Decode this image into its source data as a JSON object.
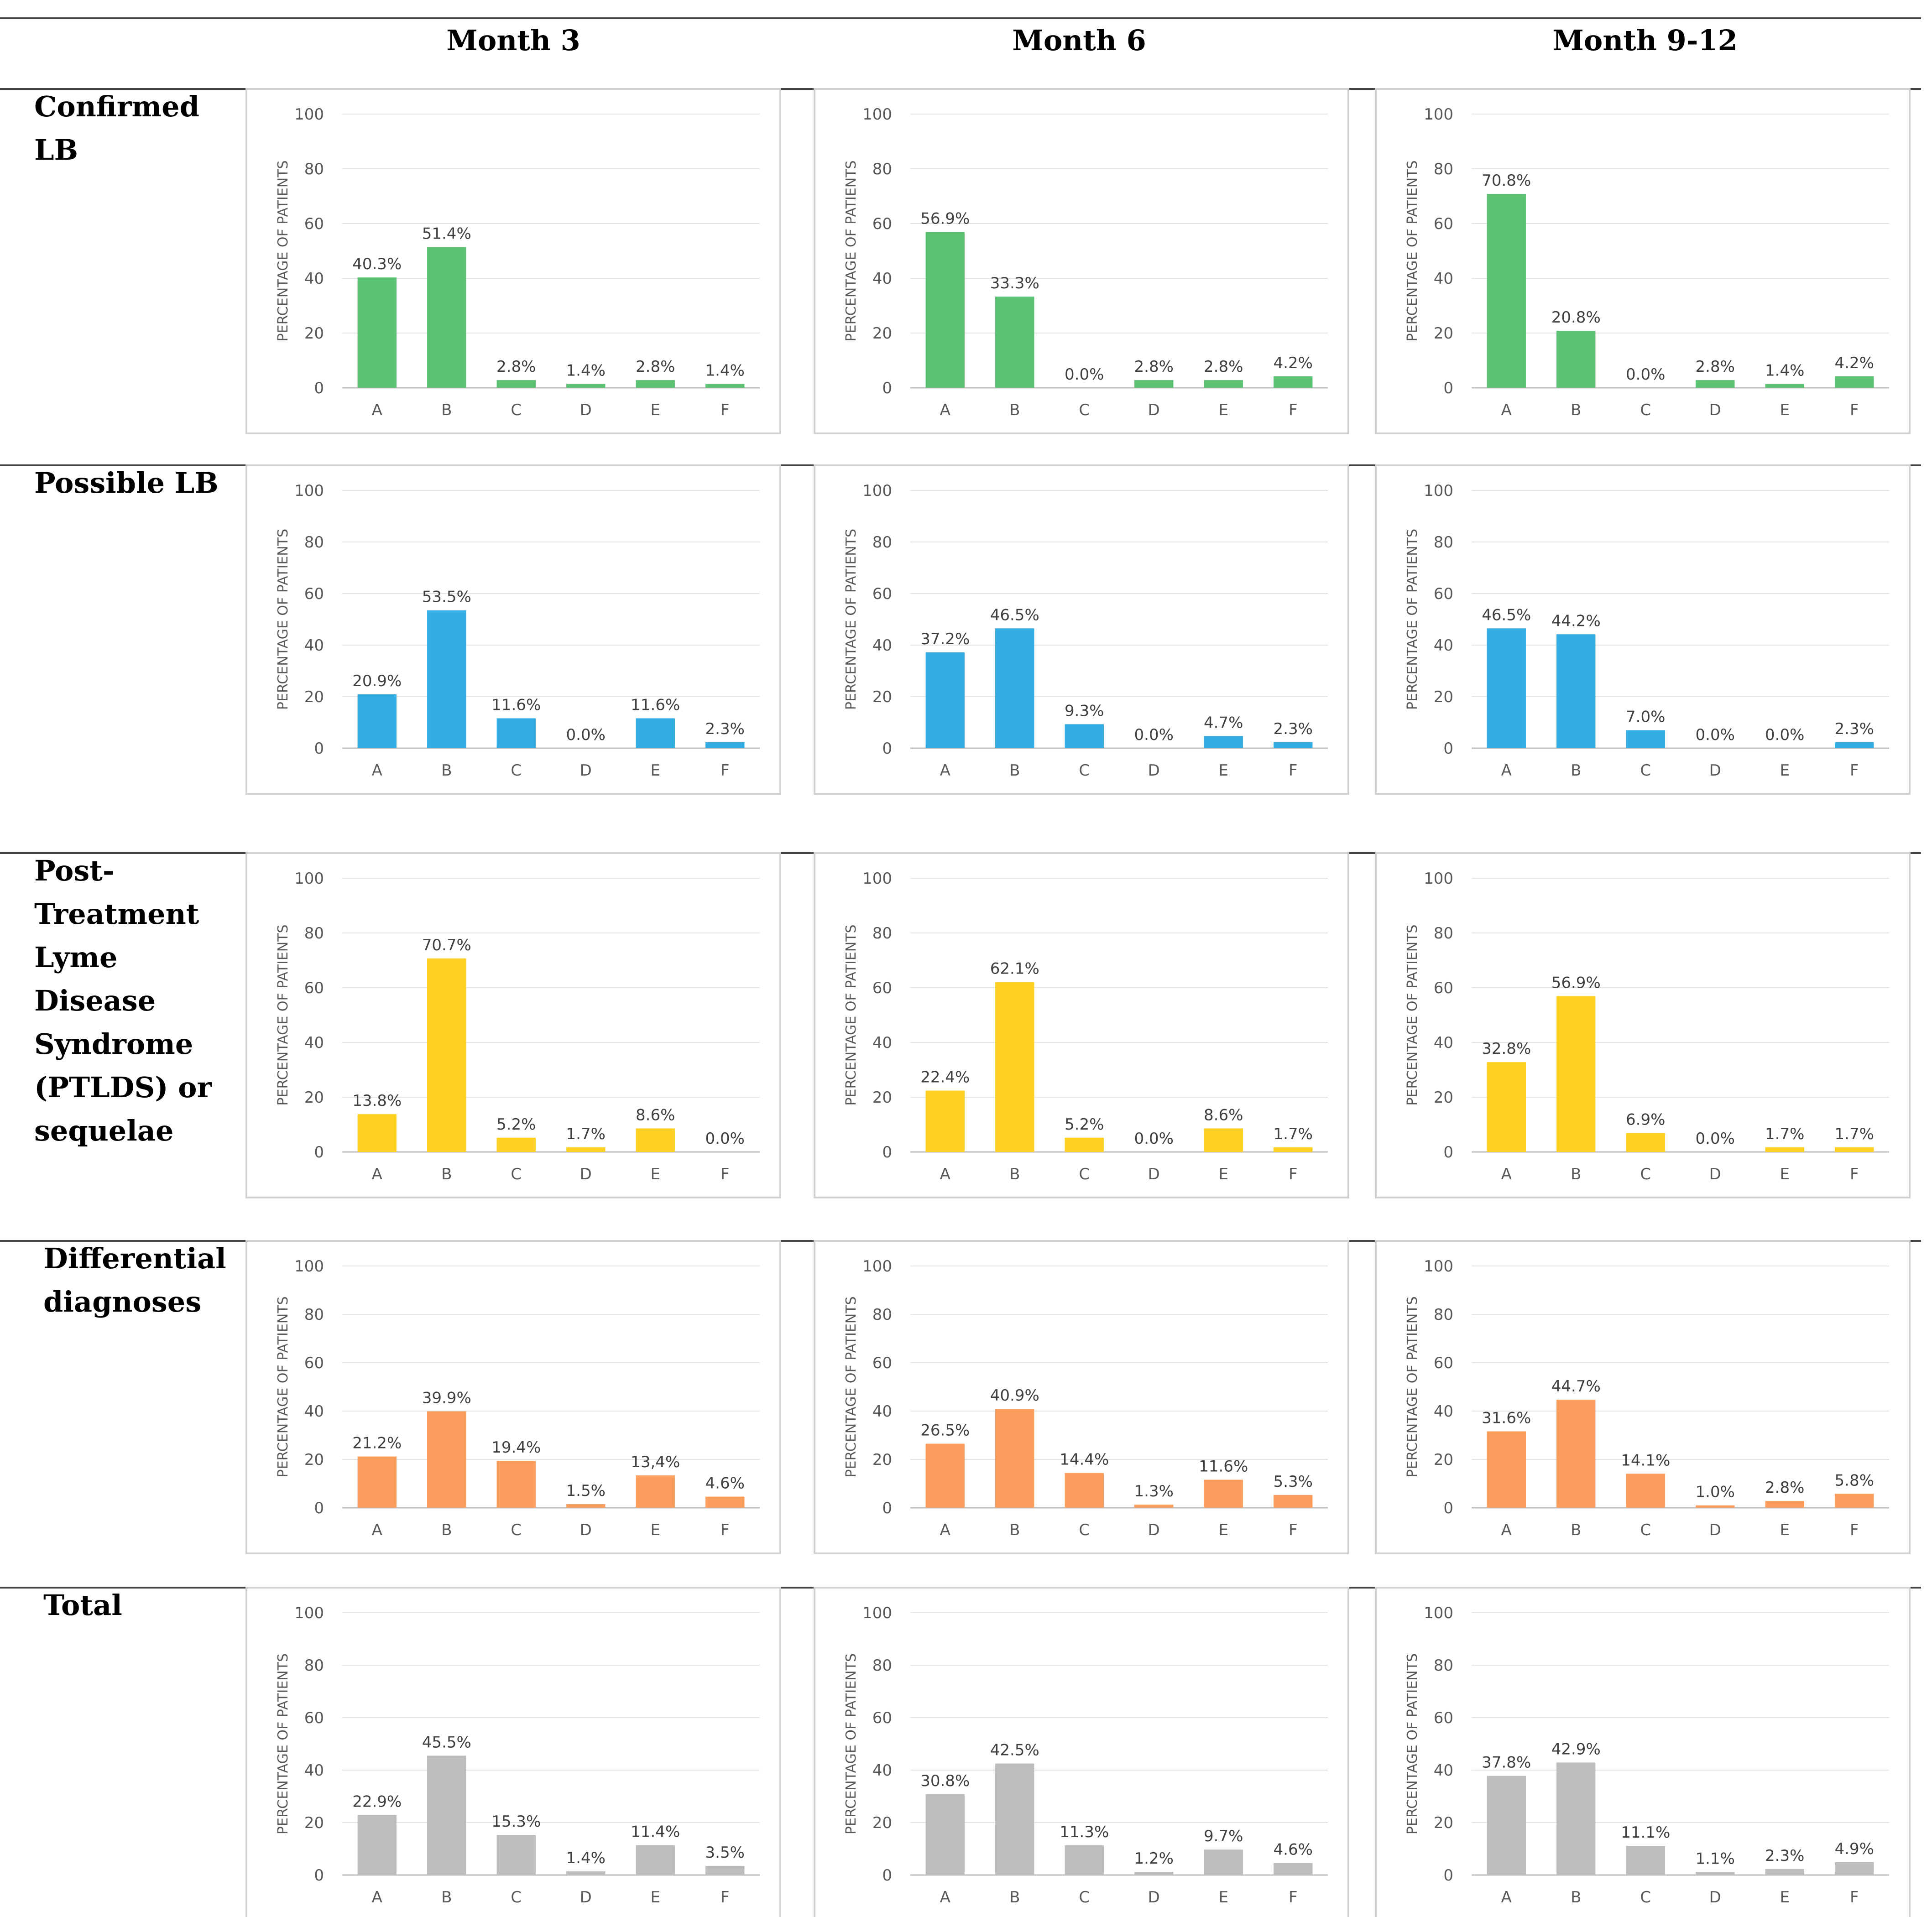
{
  "column_headers": [
    "Month 3",
    "Month 6",
    "Month 9-12"
  ],
  "row_headers": [
    [
      "Confirmed",
      "LB"
    ],
    [
      "Possible LB"
    ],
    [
      "Post-",
      "Treatment",
      "Lyme",
      "Disease",
      "Syndrome",
      "(PTLDS)    or",
      "sequelae"
    ],
    [
      "Differential",
      "diagnoses"
    ],
    [
      "Total"
    ]
  ],
  "row_colors": [
    "#5cc273",
    "#34ade2",
    "#fdd021",
    "#fb9e5d",
    "#bdbdbd"
  ],
  "chart_data": [
    {
      "type": "bar",
      "row": "Confirmed LB",
      "column": "Month 3",
      "categories": [
        "A",
        "B",
        "C",
        "D",
        "E",
        "F"
      ],
      "values": [
        40.3,
        51.4,
        2.8,
        1.4,
        2.8,
        1.4
      ],
      "labels": [
        "40.3%",
        "51.4%",
        "2.8%",
        "1.4%",
        "2.8%",
        "1.4%"
      ],
      "ylabel": "PERCENTAGE OF PATIENTS",
      "ylim": [
        0,
        100
      ],
      "yticks": [
        0,
        20,
        40,
        60,
        80,
        100
      ]
    },
    {
      "type": "bar",
      "row": "Confirmed LB",
      "column": "Month 6",
      "categories": [
        "A",
        "B",
        "C",
        "D",
        "E",
        "F"
      ],
      "values": [
        56.9,
        33.3,
        0.0,
        2.8,
        2.8,
        4.2
      ],
      "labels": [
        "56.9%",
        "33.3%",
        "0.0%",
        "2.8%",
        "2.8%",
        "4.2%"
      ],
      "ylabel": "PERCENTAGE OF PATIENTS",
      "ylim": [
        0,
        100
      ],
      "yticks": [
        0,
        20,
        40,
        60,
        80,
        100
      ]
    },
    {
      "type": "bar",
      "row": "Confirmed LB",
      "column": "Month 9-12",
      "categories": [
        "A",
        "B",
        "C",
        "D",
        "E",
        "F"
      ],
      "values": [
        70.8,
        20.8,
        0.0,
        2.8,
        1.4,
        4.2
      ],
      "labels": [
        "70.8%",
        "20.8%",
        "0.0%",
        "2.8%",
        "1.4%",
        "4.2%"
      ],
      "ylabel": "PERCENTAGE OF PATIENTS",
      "ylim": [
        0,
        100
      ],
      "yticks": [
        0,
        20,
        40,
        60,
        80,
        100
      ]
    },
    {
      "type": "bar",
      "row": "Possible LB",
      "column": "Month 3",
      "categories": [
        "A",
        "B",
        "C",
        "D",
        "E",
        "F"
      ],
      "values": [
        20.9,
        53.5,
        11.6,
        0.0,
        11.6,
        2.3
      ],
      "labels": [
        "20.9%",
        "53.5%",
        "11.6%",
        "0.0%",
        "11.6%",
        "2.3%"
      ],
      "ylabel": "PERCENTAGE OF PATIENTS",
      "ylim": [
        0,
        100
      ],
      "yticks": [
        0,
        20,
        40,
        60,
        80,
        100
      ]
    },
    {
      "type": "bar",
      "row": "Possible LB",
      "column": "Month 6",
      "categories": [
        "A",
        "B",
        "C",
        "D",
        "E",
        "F"
      ],
      "values": [
        37.2,
        46.5,
        9.3,
        0.0,
        4.7,
        2.3
      ],
      "labels": [
        "37.2%",
        "46.5%",
        "9.3%",
        "0.0%",
        "4.7%",
        "2.3%"
      ],
      "ylabel": "PERCENTAGE OF PATIENTS",
      "ylim": [
        0,
        100
      ],
      "yticks": [
        0,
        20,
        40,
        60,
        80,
        100
      ]
    },
    {
      "type": "bar",
      "row": "Possible LB",
      "column": "Month 9-12",
      "categories": [
        "A",
        "B",
        "C",
        "D",
        "E",
        "F"
      ],
      "values": [
        46.5,
        44.2,
        7.0,
        0.0,
        0.0,
        2.3
      ],
      "labels": [
        "46.5%",
        "44.2%",
        "7.0%",
        "0.0%",
        "0.0%",
        "2.3%"
      ],
      "ylabel": "PERCENTAGE OF PATIENTS",
      "ylim": [
        0,
        100
      ],
      "yticks": [
        0,
        20,
        40,
        60,
        80,
        100
      ]
    },
    {
      "type": "bar",
      "row": "PTLDS or sequelae",
      "column": "Month 3",
      "categories": [
        "A",
        "B",
        "C",
        "D",
        "E",
        "F"
      ],
      "values": [
        13.8,
        70.7,
        5.2,
        1.7,
        8.6,
        0.0
      ],
      "labels": [
        "13.8%",
        "70.7%",
        "5.2%",
        "1.7%",
        "8.6%",
        "0.0%"
      ],
      "ylabel": "PERCENTAGE OF PATIENTS",
      "ylim": [
        0,
        100
      ],
      "yticks": [
        0,
        20,
        40,
        60,
        80,
        100
      ]
    },
    {
      "type": "bar",
      "row": "PTLDS or sequelae",
      "column": "Month 6",
      "categories": [
        "A",
        "B",
        "C",
        "D",
        "E",
        "F"
      ],
      "values": [
        22.4,
        62.1,
        5.2,
        0.0,
        8.6,
        1.7
      ],
      "labels": [
        "22.4%",
        "62.1%",
        "5.2%",
        "0.0%",
        "8.6%",
        "1.7%"
      ],
      "ylabel": "PERCENTAGE OF PATIENTS",
      "ylim": [
        0,
        100
      ],
      "yticks": [
        0,
        20,
        40,
        60,
        80,
        100
      ]
    },
    {
      "type": "bar",
      "row": "PTLDS or sequelae",
      "column": "Month 9-12",
      "categories": [
        "A",
        "B",
        "C",
        "D",
        "E",
        "F"
      ],
      "values": [
        32.8,
        56.9,
        6.9,
        0.0,
        1.7,
        1.7
      ],
      "labels": [
        "32.8%",
        "56.9%",
        "6.9%",
        "0.0%",
        "1.7%",
        "1.7%"
      ],
      "ylabel": "PERCENTAGE OF PATIENTS",
      "ylim": [
        0,
        100
      ],
      "yticks": [
        0,
        20,
        40,
        60,
        80,
        100
      ]
    },
    {
      "type": "bar",
      "row": "Differential diagnoses",
      "column": "Month 3",
      "categories": [
        "A",
        "B",
        "C",
        "D",
        "E",
        "F"
      ],
      "values": [
        21.2,
        39.9,
        19.4,
        1.5,
        13.4,
        4.6
      ],
      "labels": [
        "21.2%",
        "39.9%",
        "19.4%",
        "1.5%",
        "13,4%",
        "4.6%"
      ],
      "ylabel": "PERCENTAGE OF PATIENTS",
      "ylim": [
        0,
        100
      ],
      "yticks": [
        0,
        20,
        40,
        60,
        80,
        100
      ]
    },
    {
      "type": "bar",
      "row": "Differential diagnoses",
      "column": "Month 6",
      "categories": [
        "A",
        "B",
        "C",
        "D",
        "E",
        "F"
      ],
      "values": [
        26.5,
        40.9,
        14.4,
        1.3,
        11.6,
        5.3
      ],
      "labels": [
        "26.5%",
        "40.9%",
        "14.4%",
        "1.3%",
        "11.6%",
        "5.3%"
      ],
      "ylabel": "PERCENTAGE OF PATIENTS",
      "ylim": [
        0,
        100
      ],
      "yticks": [
        0,
        20,
        40,
        60,
        80,
        100
      ]
    },
    {
      "type": "bar",
      "row": "Differential diagnoses",
      "column": "Month 9-12",
      "categories": [
        "A",
        "B",
        "C",
        "D",
        "E",
        "F"
      ],
      "values": [
        31.6,
        44.7,
        14.1,
        1.0,
        2.8,
        5.8
      ],
      "labels": [
        "31.6%",
        "44.7%",
        "14.1%",
        "1.0%",
        "2.8%",
        "5.8%"
      ],
      "ylabel": "PERCENTAGE OF PATIENTS",
      "ylim": [
        0,
        100
      ],
      "yticks": [
        0,
        20,
        40,
        60,
        80,
        100
      ]
    },
    {
      "type": "bar",
      "row": "Total",
      "column": "Month 3",
      "categories": [
        "A",
        "B",
        "C",
        "D",
        "E",
        "F"
      ],
      "values": [
        22.9,
        45.5,
        15.3,
        1.4,
        11.4,
        3.5
      ],
      "labels": [
        "22.9%",
        "45.5%",
        "15.3%",
        "1.4%",
        "11.4%",
        "3.5%"
      ],
      "ylabel": "PERCENTAGE OF PATIENTS",
      "ylim": [
        0,
        100
      ],
      "yticks": [
        0,
        20,
        40,
        60,
        80,
        100
      ]
    },
    {
      "type": "bar",
      "row": "Total",
      "column": "Month 6",
      "categories": [
        "A",
        "B",
        "C",
        "D",
        "E",
        "F"
      ],
      "values": [
        30.8,
        42.5,
        11.3,
        1.2,
        9.7,
        4.6
      ],
      "labels": [
        "30.8%",
        "42.5%",
        "11.3%",
        "1.2%",
        "9.7%",
        "4.6%"
      ],
      "ylabel": "PERCENTAGE OF PATIENTS",
      "ylim": [
        0,
        100
      ],
      "yticks": [
        0,
        20,
        40,
        60,
        80,
        100
      ]
    },
    {
      "type": "bar",
      "row": "Total",
      "column": "Month 9-12",
      "categories": [
        "A",
        "B",
        "C",
        "D",
        "E",
        "F"
      ],
      "values": [
        37.8,
        42.9,
        11.1,
        1.1,
        2.3,
        4.9
      ],
      "labels": [
        "37.8%",
        "42.9%",
        "11.1%",
        "1.1%",
        "2.3%",
        "4.9%"
      ],
      "ylabel": "PERCENTAGE OF PATIENTS",
      "ylim": [
        0,
        100
      ],
      "yticks": [
        0,
        20,
        40,
        60,
        80,
        100
      ]
    }
  ]
}
